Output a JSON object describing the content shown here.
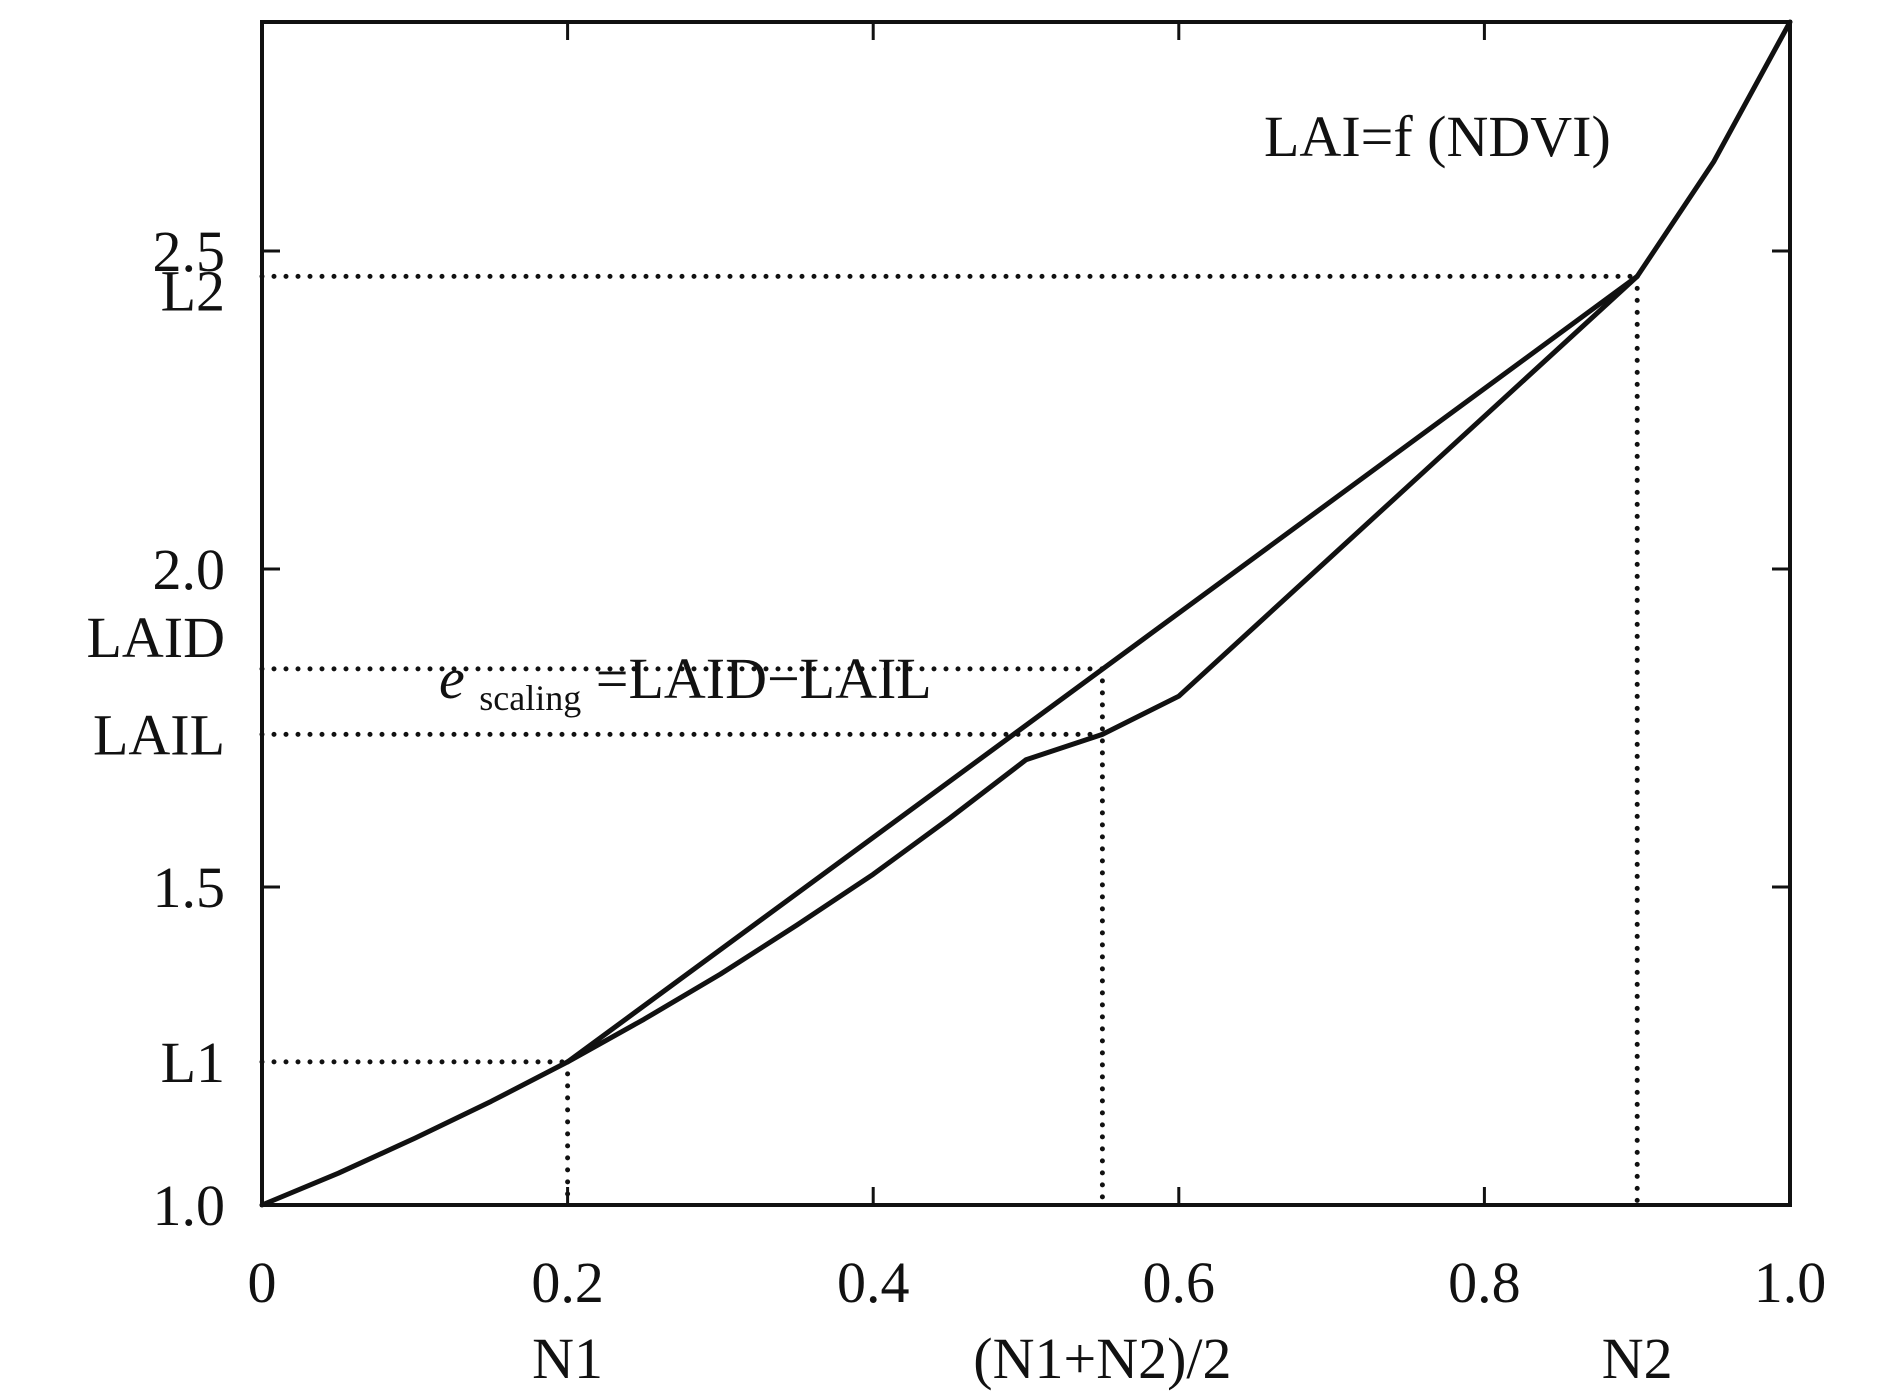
{
  "chart_data": {
    "type": "line",
    "title": "",
    "xlabel": "",
    "ylabel": "",
    "xlim": [
      0,
      1.0
    ],
    "ylim": [
      1.0,
      2.86
    ],
    "grid": false,
    "x_ticks": [
      {
        "value": 0,
        "label": "0"
      },
      {
        "value": 0.2,
        "label": "0.2"
      },
      {
        "value": 0.4,
        "label": "0.4"
      },
      {
        "value": 0.6,
        "label": "0.6"
      },
      {
        "value": 0.8,
        "label": "0.8"
      },
      {
        "value": 1.0,
        "label": "1.0"
      }
    ],
    "y_ticks": [
      {
        "value": 1.0,
        "label": "1.0"
      },
      {
        "value": 1.5,
        "label": "1.5"
      },
      {
        "value": 2.0,
        "label": "2.0"
      },
      {
        "value": 2.5,
        "label": "2.5"
      }
    ],
    "x_markers": [
      {
        "value": 0.2,
        "label": "N1"
      },
      {
        "value": 0.55,
        "label": "(N1+N2)/2"
      },
      {
        "value": 0.9,
        "label": "N2"
      }
    ],
    "y_markers": [
      {
        "value": 1.225,
        "label": "L1"
      },
      {
        "value": 2.46,
        "label": "L2"
      },
      {
        "value": 1.843,
        "label": "LAID"
      },
      {
        "value": 1.74,
        "label": "LAIL"
      }
    ],
    "series": [
      {
        "x": [
          0,
          0.05,
          0.1,
          0.15,
          0.2,
          0.25,
          0.3,
          0.35,
          0.4,
          0.45,
          0.5,
          0.55,
          0.6,
          0.65,
          0.7,
          0.75,
          0.8,
          0.85,
          0.9,
          0.95,
          1.0
        ],
        "values": [
          1.0,
          1.05,
          1.105,
          1.163,
          1.225,
          1.292,
          1.363,
          1.44,
          1.52,
          1.608,
          1.7,
          1.74,
          1.8,
          1.91,
          2.02,
          2.13,
          2.24,
          2.35,
          2.46,
          2.64,
          2.86
        ]
      },
      {
        "x": [
          0.2,
          0.9
        ],
        "values": [
          1.225,
          2.46
        ]
      }
    ],
    "annotations": [
      {
        "text": "LAI=f (NDVI)"
      },
      {
        "base": "e",
        "subscript": "scaling",
        "text": "=LAID−LAIL"
      }
    ]
  }
}
